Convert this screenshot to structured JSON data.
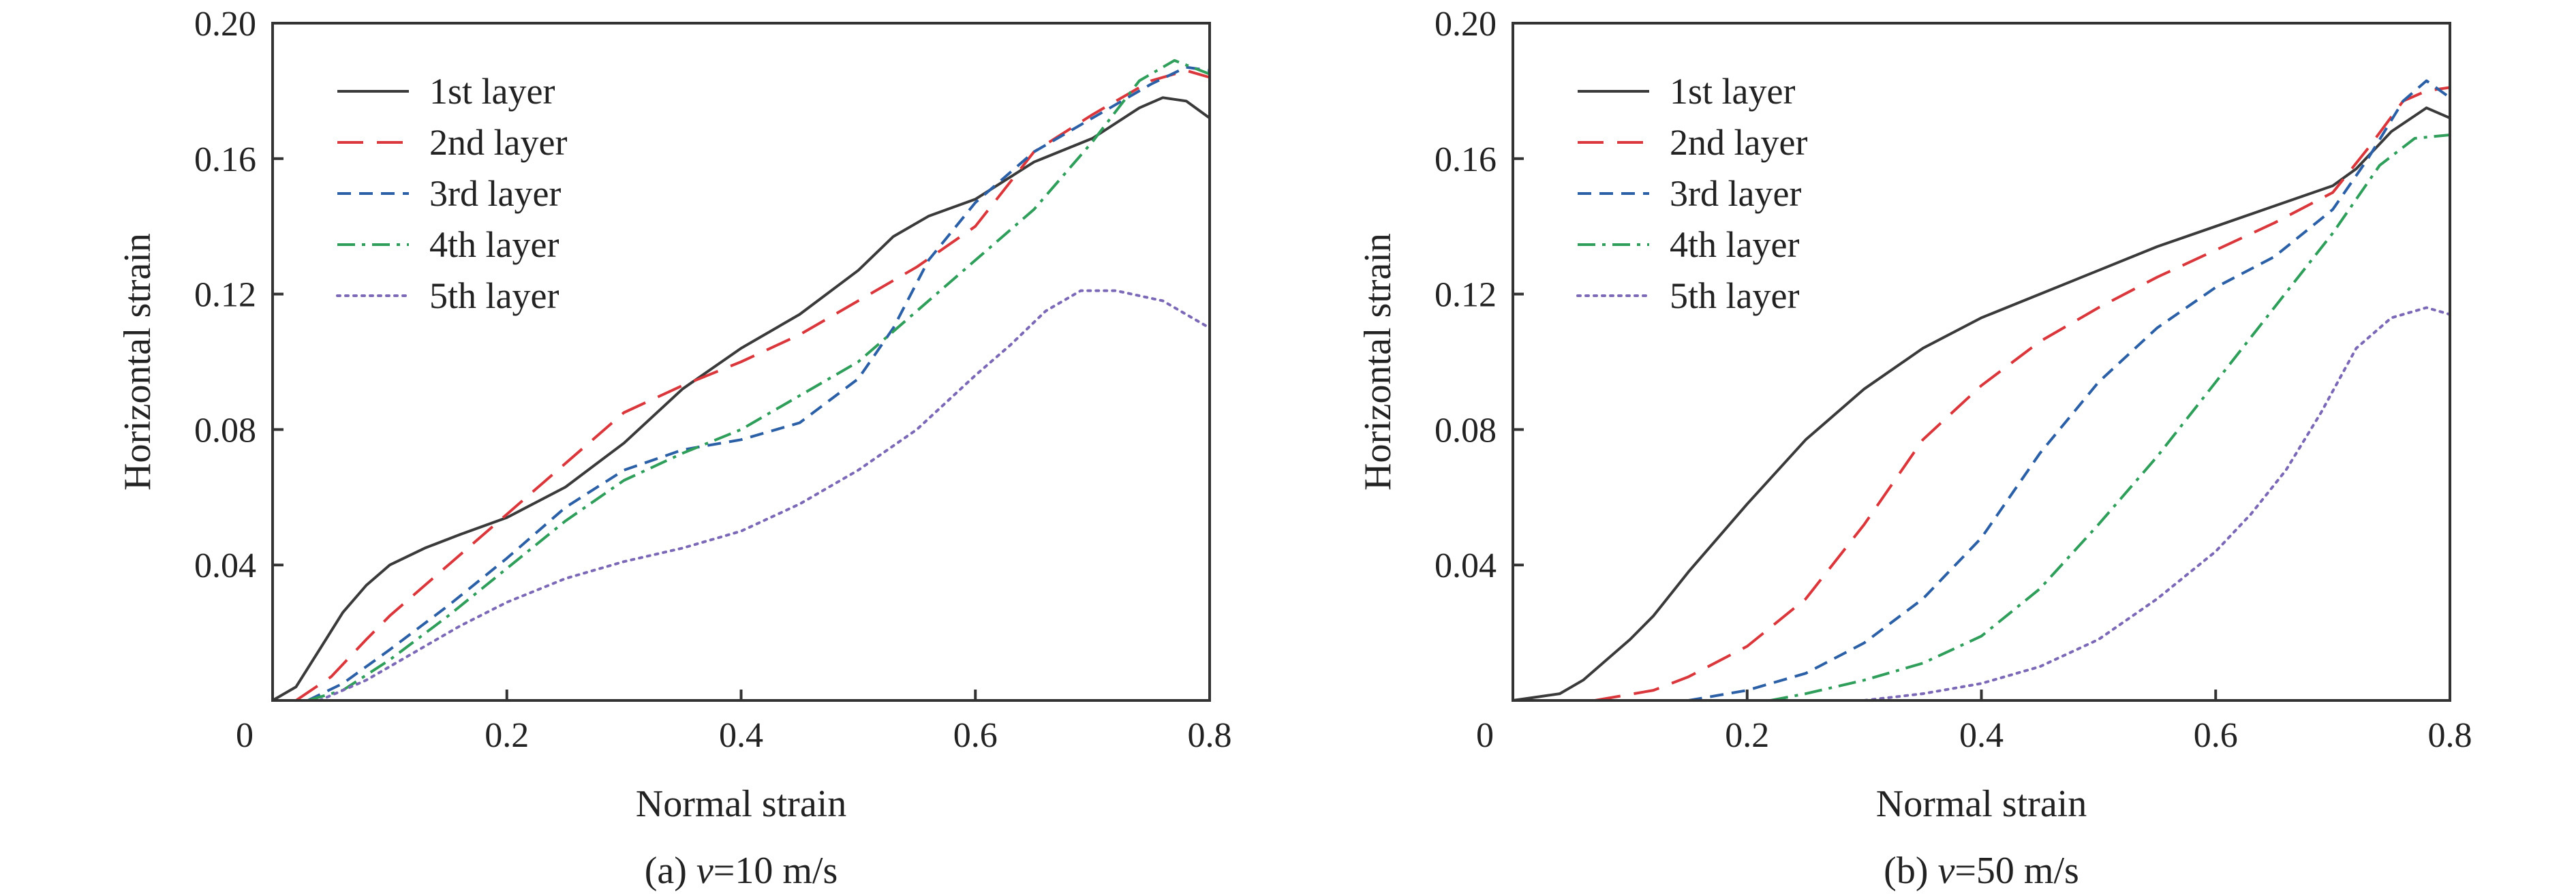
{
  "chart_data": [
    {
      "type": "line",
      "caption": {
        "prefix": "(a) ",
        "var": "v",
        "suffix": "=10 m/s"
      },
      "xlabel": "Normal strain",
      "ylabel": "Horizontal strain",
      "xlim": [
        0,
        0.8
      ],
      "ylim": [
        0,
        0.2
      ],
      "xticks": [
        0,
        0.2,
        0.4,
        0.6,
        0.8
      ],
      "xtick_labels": [
        "0",
        "0.2",
        "0.4",
        "0.6",
        "0.8"
      ],
      "yticks": [
        0.04,
        0.08,
        0.12,
        0.16,
        0.2
      ],
      "ytick_labels": [
        "0.04",
        "0.08",
        "0.12",
        "0.16",
        "0.20"
      ],
      "legend_position": "top-left",
      "grid": false,
      "series": [
        {
          "name": "1st layer",
          "color": "#3a3a3a",
          "dash": "solid",
          "x": [
            0,
            0.02,
            0.04,
            0.06,
            0.08,
            0.1,
            0.13,
            0.16,
            0.2,
            0.25,
            0.3,
            0.35,
            0.4,
            0.45,
            0.5,
            0.53,
            0.56,
            0.6,
            0.65,
            0.7,
            0.74,
            0.76,
            0.78,
            0.8
          ],
          "y": [
            0,
            0.004,
            0.015,
            0.026,
            0.034,
            0.04,
            0.045,
            0.049,
            0.054,
            0.063,
            0.076,
            0.092,
            0.104,
            0.114,
            0.127,
            0.137,
            0.143,
            0.148,
            0.159,
            0.166,
            0.175,
            0.178,
            0.177,
            0.172
          ]
        },
        {
          "name": "2nd layer",
          "color": "#d9373b",
          "dash": "long-dash",
          "x": [
            0.02,
            0.05,
            0.08,
            0.1,
            0.15,
            0.2,
            0.25,
            0.3,
            0.35,
            0.4,
            0.45,
            0.5,
            0.55,
            0.6,
            0.65,
            0.7,
            0.75,
            0.78,
            0.8
          ],
          "y": [
            0,
            0.007,
            0.018,
            0.025,
            0.04,
            0.055,
            0.07,
            0.085,
            0.093,
            0.1,
            0.108,
            0.118,
            0.128,
            0.14,
            0.162,
            0.173,
            0.183,
            0.186,
            0.184
          ]
        },
        {
          "name": "3rd layer",
          "color": "#2b5fa6",
          "dash": "short-dash",
          "x": [
            0.03,
            0.06,
            0.1,
            0.15,
            0.2,
            0.25,
            0.3,
            0.35,
            0.4,
            0.45,
            0.5,
            0.53,
            0.56,
            0.6,
            0.65,
            0.7,
            0.75,
            0.78,
            0.8
          ],
          "y": [
            0,
            0.005,
            0.015,
            0.028,
            0.042,
            0.057,
            0.068,
            0.074,
            0.077,
            0.082,
            0.095,
            0.11,
            0.13,
            0.147,
            0.162,
            0.172,
            0.182,
            0.187,
            0.186
          ]
        },
        {
          "name": "4th layer",
          "color": "#2f9e5a",
          "dash": "dash-dot",
          "x": [
            0.03,
            0.06,
            0.1,
            0.15,
            0.2,
            0.25,
            0.3,
            0.35,
            0.4,
            0.45,
            0.5,
            0.55,
            0.6,
            0.65,
            0.7,
            0.74,
            0.77,
            0.8
          ],
          "y": [
            0,
            0.003,
            0.012,
            0.025,
            0.039,
            0.053,
            0.065,
            0.073,
            0.08,
            0.09,
            0.1,
            0.115,
            0.13,
            0.145,
            0.165,
            0.183,
            0.189,
            0.185
          ]
        },
        {
          "name": "5th layer",
          "color": "#7b68b6",
          "dash": "dotted",
          "x": [
            0.04,
            0.08,
            0.12,
            0.16,
            0.2,
            0.25,
            0.3,
            0.35,
            0.4,
            0.45,
            0.5,
            0.55,
            0.6,
            0.63,
            0.66,
            0.69,
            0.72,
            0.76,
            0.8
          ],
          "y": [
            0,
            0.006,
            0.014,
            0.022,
            0.029,
            0.036,
            0.041,
            0.045,
            0.05,
            0.058,
            0.068,
            0.08,
            0.096,
            0.105,
            0.115,
            0.121,
            0.121,
            0.118,
            0.11
          ]
        }
      ]
    },
    {
      "type": "line",
      "caption": {
        "prefix": "(b) ",
        "var": "v",
        "suffix": "=50 m/s"
      },
      "xlabel": "Normal strain",
      "ylabel": "Horizontal strain",
      "xlim": [
        0,
        0.8
      ],
      "ylim": [
        0,
        0.2
      ],
      "xticks": [
        0,
        0.2,
        0.4,
        0.6,
        0.8
      ],
      "xtick_labels": [
        "0",
        "0.2",
        "0.4",
        "0.6",
        "0.8"
      ],
      "yticks": [
        0.04,
        0.08,
        0.12,
        0.16,
        0.2
      ],
      "ytick_labels": [
        "0.04",
        "0.08",
        "0.12",
        "0.16",
        "0.20"
      ],
      "legend_position": "top-left",
      "grid": false,
      "series": [
        {
          "name": "1st layer",
          "color": "#3a3a3a",
          "dash": "solid",
          "x": [
            0,
            0.04,
            0.06,
            0.08,
            0.1,
            0.12,
            0.15,
            0.2,
            0.25,
            0.3,
            0.35,
            0.4,
            0.45,
            0.5,
            0.55,
            0.6,
            0.65,
            0.7,
            0.72,
            0.75,
            0.78,
            0.8
          ],
          "y": [
            0,
            0.002,
            0.006,
            0.012,
            0.018,
            0.025,
            0.038,
            0.058,
            0.077,
            0.092,
            0.104,
            0.113,
            0.12,
            0.127,
            0.134,
            0.14,
            0.146,
            0.152,
            0.157,
            0.168,
            0.175,
            0.172
          ]
        },
        {
          "name": "2nd layer",
          "color": "#d9373b",
          "dash": "long-dash",
          "x": [
            0.07,
            0.12,
            0.15,
            0.2,
            0.25,
            0.3,
            0.35,
            0.4,
            0.45,
            0.5,
            0.55,
            0.6,
            0.65,
            0.7,
            0.73,
            0.76,
            0.78,
            0.8
          ],
          "y": [
            0,
            0.003,
            0.007,
            0.016,
            0.03,
            0.052,
            0.077,
            0.093,
            0.106,
            0.116,
            0.125,
            0.133,
            0.141,
            0.15,
            0.163,
            0.177,
            0.18,
            0.181
          ]
        },
        {
          "name": "3rd layer",
          "color": "#2b5fa6",
          "dash": "short-dash",
          "x": [
            0.15,
            0.2,
            0.25,
            0.3,
            0.35,
            0.4,
            0.45,
            0.5,
            0.55,
            0.6,
            0.65,
            0.7,
            0.73,
            0.76,
            0.78,
            0.8
          ],
          "y": [
            0,
            0.003,
            0.008,
            0.017,
            0.03,
            0.048,
            0.073,
            0.094,
            0.11,
            0.122,
            0.131,
            0.145,
            0.16,
            0.177,
            0.183,
            0.178
          ]
        },
        {
          "name": "4th layer",
          "color": "#2f9e5a",
          "dash": "dash-dot",
          "x": [
            0.22,
            0.25,
            0.3,
            0.35,
            0.4,
            0.45,
            0.5,
            0.55,
            0.6,
            0.65,
            0.7,
            0.74,
            0.77,
            0.8
          ],
          "y": [
            0,
            0.002,
            0.006,
            0.011,
            0.019,
            0.033,
            0.052,
            0.072,
            0.094,
            0.116,
            0.138,
            0.158,
            0.166,
            0.167
          ]
        },
        {
          "name": "5th layer",
          "color": "#7b68b6",
          "dash": "dotted",
          "x": [
            0.3,
            0.35,
            0.4,
            0.45,
            0.5,
            0.55,
            0.6,
            0.63,
            0.66,
            0.69,
            0.72,
            0.75,
            0.78,
            0.8
          ],
          "y": [
            0,
            0.002,
            0.005,
            0.01,
            0.018,
            0.03,
            0.044,
            0.055,
            0.068,
            0.085,
            0.104,
            0.113,
            0.116,
            0.114
          ]
        }
      ]
    }
  ]
}
